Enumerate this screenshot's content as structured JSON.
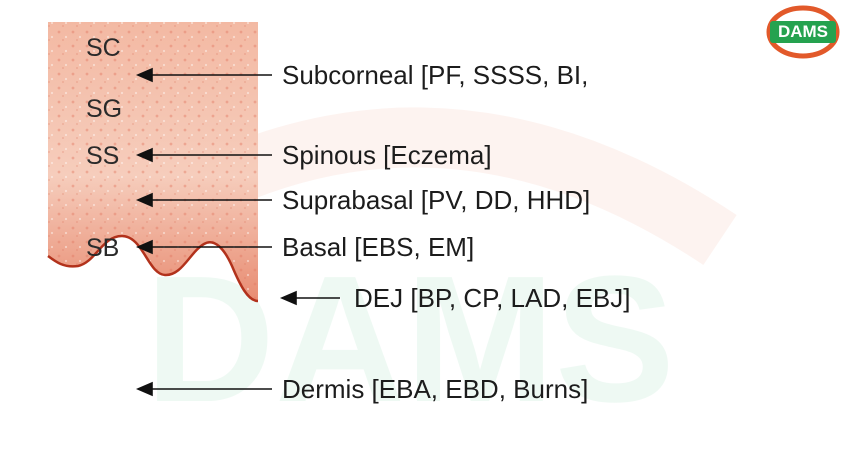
{
  "logo": {
    "text": "DAMS"
  },
  "watermark": {
    "text": "DAMS"
  },
  "layers": [
    {
      "abbr": "SC"
    },
    {
      "abbr": "SG"
    },
    {
      "abbr": "SS"
    },
    {
      "abbr": "SB"
    }
  ],
  "sites": [
    {
      "label": "Subcorneal [PF, SSSS, BI,"
    },
    {
      "label": "Spinous [Eczema]"
    },
    {
      "label": "Suprabasal [PV, DD, HHD]"
    },
    {
      "label": "Basal [EBS, EM]"
    },
    {
      "label": "DEJ [BP, CP, LAD, EBJ]"
    },
    {
      "label": "Dermis [EBA, EBD, Burns]"
    }
  ],
  "colors": {
    "epidermis_light": "#f6c9b5",
    "epidermis_dark": "#e48a73",
    "dej_line": "#b2321c",
    "arrow": "#111111",
    "logo_ring": "#e2592a",
    "logo_fill": "#25a24f"
  }
}
